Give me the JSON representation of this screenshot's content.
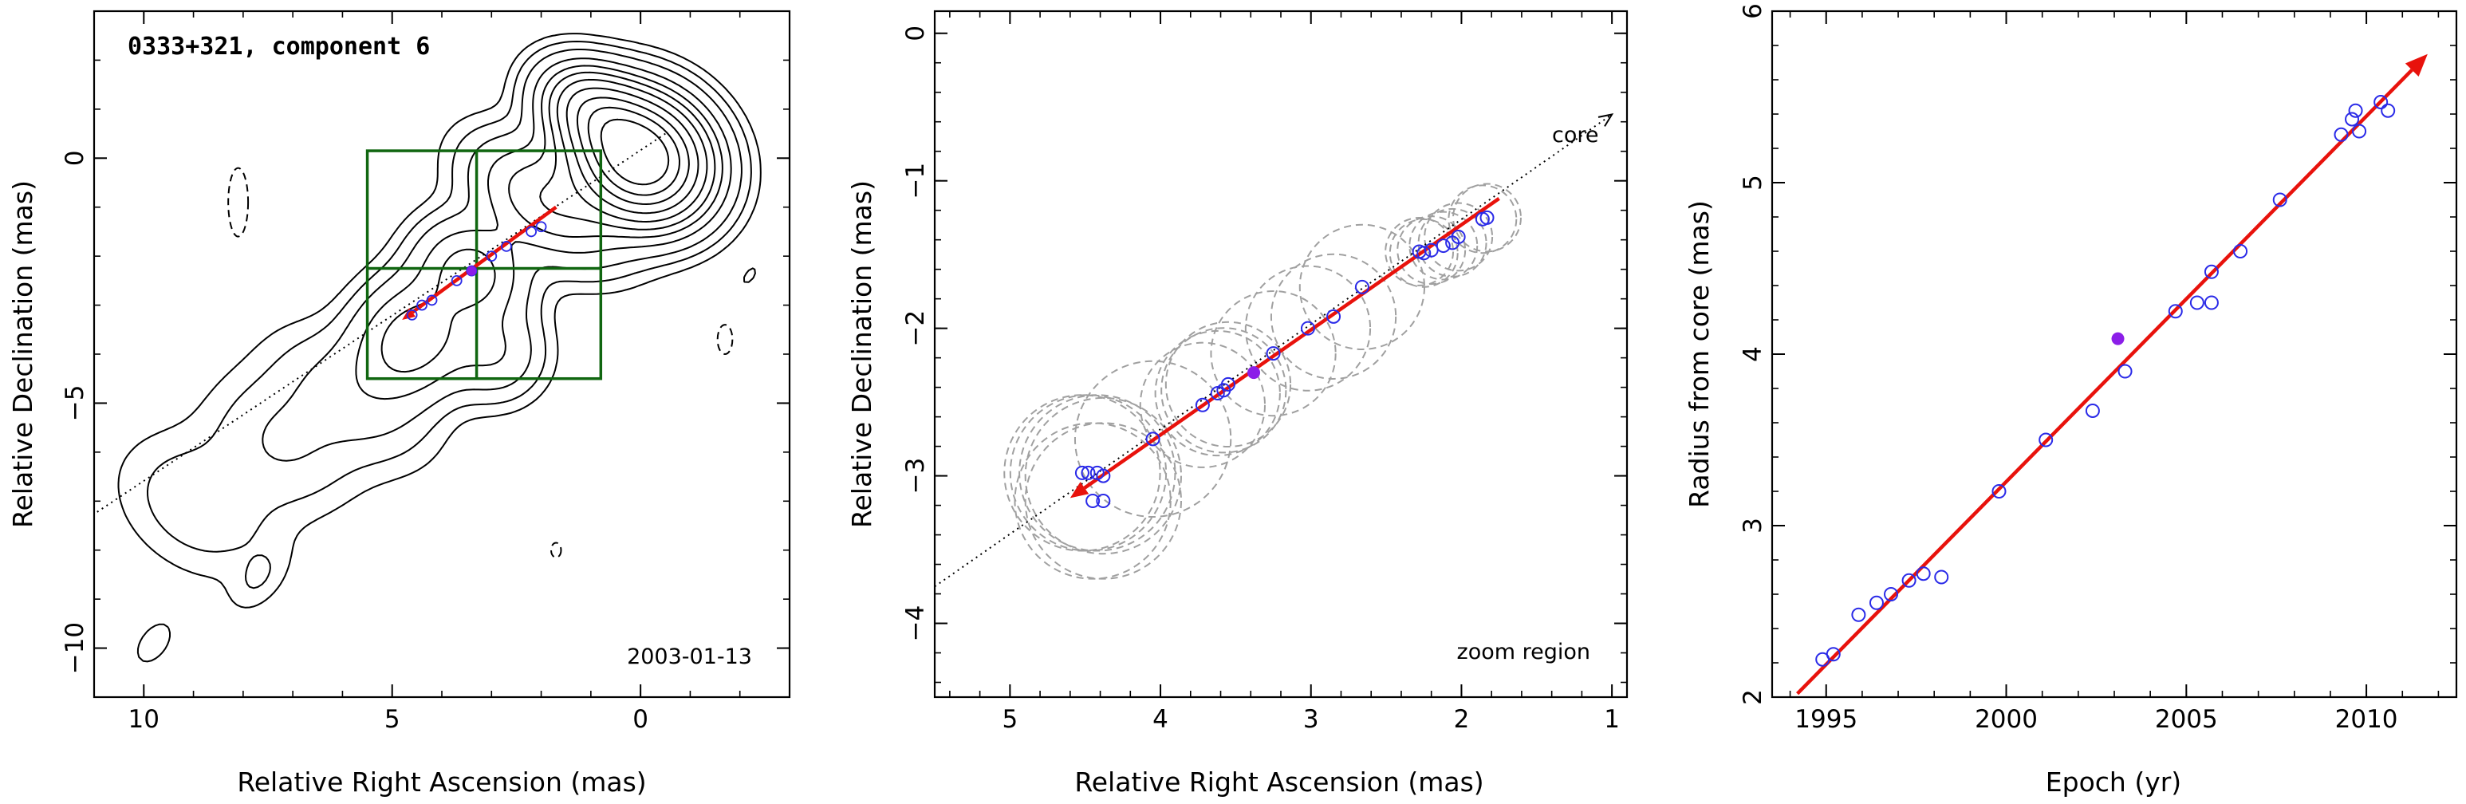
{
  "chart_data": [
    {
      "type": "contour",
      "title": "0333+321, component 6",
      "date": "2003-01-13",
      "xlabel": "Relative Right Ascension (mas)",
      "ylabel": "Relative Declination (mas)",
      "xlim": [
        11,
        -3
      ],
      "ylim": [
        -11,
        3
      ],
      "xticks": [
        "10",
        "5",
        "0"
      ],
      "xtick_values": [
        10,
        5,
        0
      ],
      "yticks": [
        "0",
        "−5",
        "−10"
      ],
      "ytick_values": [
        0,
        -5,
        -10
      ],
      "contour_sources": [
        {
          "x": 0.0,
          "y": 0.0,
          "sx": 0.8,
          "sy": 0.7,
          "peak": 1.0
        },
        {
          "x": 0.9,
          "y": 0.9,
          "sx": 0.7,
          "sy": 0.5,
          "peak": 0.35
        },
        {
          "x": 1.9,
          "y": -0.9,
          "sx": 1.0,
          "sy": 0.6,
          "peak": 0.14
        },
        {
          "x": 3.4,
          "y": -2.3,
          "sx": 0.7,
          "sy": 0.6,
          "peak": 0.12
        },
        {
          "x": 4.6,
          "y": -3.7,
          "sx": 0.7,
          "sy": 0.8,
          "peak": 0.13
        },
        {
          "x": 2.9,
          "y": -4.0,
          "sx": 0.6,
          "sy": 0.6,
          "peak": 0.055
        },
        {
          "x": 5.8,
          "y": -4.9,
          "sx": 1.1,
          "sy": 0.7,
          "peak": 0.035
        },
        {
          "x": 7.2,
          "y": -5.8,
          "sx": 1.0,
          "sy": 0.8,
          "peak": 0.03
        },
        {
          "x": 8.9,
          "y": -7.1,
          "sx": 1.1,
          "sy": 0.8,
          "peak": 0.025
        },
        {
          "x": 7.7,
          "y": -8.6,
          "sx": 0.3,
          "sy": 0.5,
          "peak": 0.012
        },
        {
          "x": 9.8,
          "y": -9.9,
          "sx": 0.3,
          "sy": 0.5,
          "peak": 0.01
        },
        {
          "x": 1.3,
          "y": 1.3,
          "sx": 0.2,
          "sy": 0.3,
          "peak": 0.01
        },
        {
          "x": -2.2,
          "y": -2.4,
          "sx": 0.15,
          "sy": 0.3,
          "peak": 0.008
        }
      ],
      "contour_levels": [
        0.007,
        0.015,
        0.03,
        0.06,
        0.1,
        0.15,
        0.22,
        0.32,
        0.45,
        0.6,
        0.78
      ],
      "negative_contours": [
        {
          "x": 8.1,
          "y": -0.9,
          "rx": 0.2,
          "ry": 0.7
        },
        {
          "x": -1.7,
          "y": -3.7,
          "rx": 0.15,
          "ry": 0.3
        },
        {
          "x": 1.7,
          "y": -8.0,
          "rx": 0.1,
          "ry": 0.15
        }
      ],
      "dotted_line": {
        "x": [
          11.5,
          -0.5
        ],
        "y": [
          -7.6,
          0.5
        ]
      },
      "motion_arrow": {
        "x_start": 1.7,
        "y_start": -1.0,
        "x_end": 4.8,
        "y_end": -3.3
      },
      "positions": {
        "x": [
          4.6,
          4.4,
          4.2,
          3.7,
          3.4,
          3.0,
          2.7,
          2.2,
          2.0
        ],
        "y": [
          -3.2,
          -3.0,
          -2.9,
          -2.5,
          -2.3,
          -2.0,
          -1.8,
          -1.5,
          -1.4
        ]
      },
      "highlighted_point": {
        "x": 3.4,
        "y": -2.3
      },
      "zoom_box": {
        "x": [
          5.5,
          0.8
        ],
        "y": [
          0.15,
          -4.5
        ]
      },
      "zoom_box_dividers": {
        "x": 3.3,
        "y": -2.25
      }
    },
    {
      "type": "scatter",
      "xlabel": "Relative Right Ascension (mas)",
      "ylabel": "Relative Declination (mas)",
      "xlim": [
        5.5,
        0.9
      ],
      "ylim": [
        -4.5,
        0.15
      ],
      "xticks": [
        "5",
        "4",
        "3",
        "2",
        "1"
      ],
      "xtick_values": [
        5,
        4,
        3,
        2,
        1
      ],
      "yticks": [
        "0",
        "−1",
        "−2",
        "−3",
        "−4"
      ],
      "ytick_values": [
        0,
        -1,
        -2,
        -3,
        -4
      ],
      "core_label": "core",
      "zoom_label": "zoom region",
      "x": [
        4.52,
        4.48,
        4.42,
        4.38,
        4.45,
        4.38,
        4.05,
        3.72,
        3.62,
        3.58,
        3.55,
        3.25,
        3.02,
        2.85,
        2.66,
        2.28,
        2.25,
        2.2,
        2.12,
        2.06,
        2.02,
        1.86,
        1.83
      ],
      "y": [
        -2.98,
        -2.98,
        -2.98,
        -3.0,
        -3.17,
        -3.17,
        -2.75,
        -2.52,
        -2.44,
        -2.42,
        -2.38,
        -2.17,
        -2.0,
        -1.92,
        -1.72,
        -1.48,
        -1.49,
        -1.47,
        -1.44,
        -1.42,
        -1.38,
        -1.26,
        -1.25
      ],
      "highlighted_point": {
        "x": 3.38,
        "y": -2.3
      },
      "circle_radius": 0.45,
      "dotted_line": {
        "x": [
          5.5,
          1.0
        ],
        "y": [
          -3.75,
          -0.55
        ]
      },
      "motion_arrow": {
        "x_start": 1.75,
        "y_start": -1.12,
        "x_end": 4.6,
        "y_end": -3.15
      }
    },
    {
      "type": "scatter",
      "xlabel": "Epoch (yr)",
      "ylabel": "Radius from core (mas)",
      "xlim": [
        1993.5,
        2012.5
      ],
      "ylim": [
        2,
        6
      ],
      "xticks": [
        "1995",
        "2000",
        "2005",
        "2010"
      ],
      "xtick_values": [
        1995,
        2000,
        2005,
        2010
      ],
      "yticks": [
        "2",
        "3",
        "4",
        "5",
        "6"
      ],
      "ytick_values": [
        2,
        3,
        4,
        5,
        6
      ],
      "x": [
        1994.9,
        1995.2,
        1995.9,
        1996.4,
        1996.8,
        1997.3,
        1997.7,
        1998.2,
        1999.8,
        2001.1,
        2002.4,
        2003.3,
        2004.7,
        2005.3,
        2005.7,
        2005.7,
        2006.5,
        2007.6,
        2009.3,
        2009.6,
        2009.7,
        2009.8,
        2010.4,
        2010.6
      ],
      "y": [
        2.22,
        2.25,
        2.48,
        2.55,
        2.6,
        2.68,
        2.72,
        2.7,
        3.2,
        3.5,
        3.67,
        3.9,
        4.25,
        4.3,
        4.3,
        4.48,
        4.6,
        4.9,
        5.28,
        5.37,
        5.42,
        5.3,
        5.47,
        5.42
      ],
      "highlighted_point": {
        "x": 2003.1,
        "y": 4.09
      },
      "fit_arrow": {
        "x_start": 1994.2,
        "y_start": 2.02,
        "x_end": 2011.7,
        "y_end": 5.75
      }
    }
  ]
}
